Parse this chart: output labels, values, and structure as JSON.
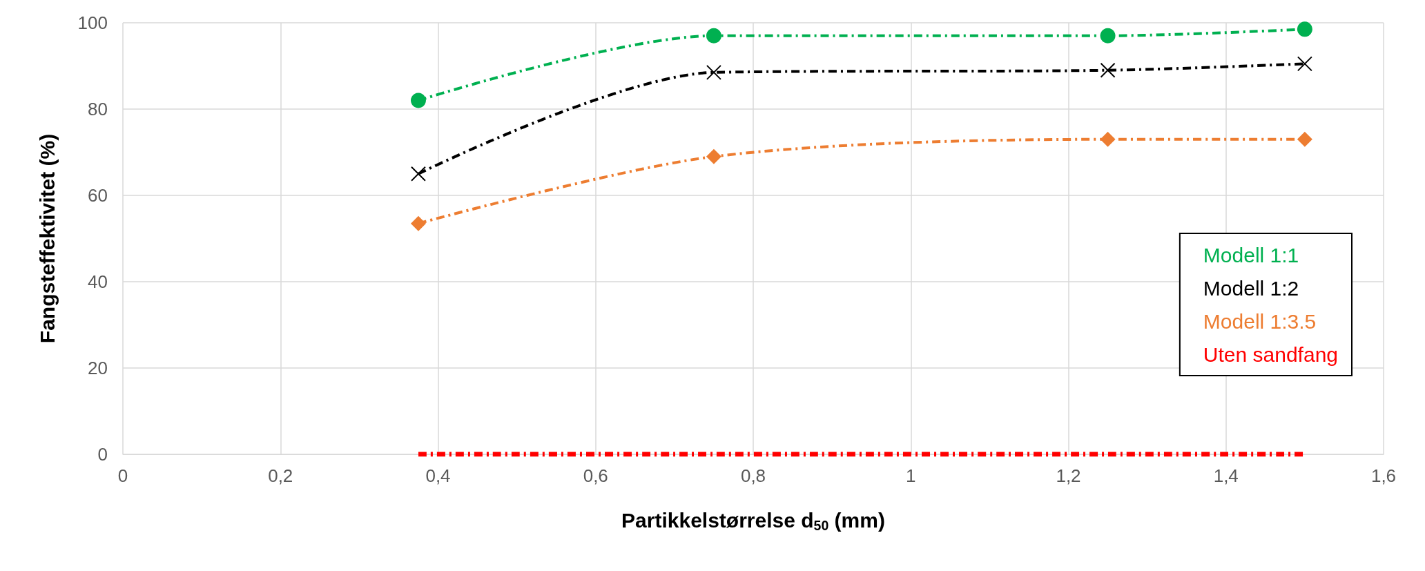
{
  "chart_data": {
    "type": "line",
    "xlabel": "Partikkelstørrelse d$_{50}$ (mm)",
    "ylabel": "Fangsteffektivitet (%)",
    "x": [
      0.375,
      0.75,
      1.25,
      1.5
    ],
    "series": [
      {
        "name": "Modell 1:1",
        "color": "#00b050",
        "marker": "circle",
        "values": [
          82,
          97,
          97,
          98.5
        ]
      },
      {
        "name": "Modell 1:2",
        "color": "#000000",
        "marker": "cross",
        "values": [
          65,
          88.5,
          89,
          90.5
        ]
      },
      {
        "name": "Modell 1:3.5",
        "color": "#ed7d31",
        "marker": "diamond",
        "values": [
          53.5,
          69,
          73,
          73
        ]
      },
      {
        "name": "Uten sandfang",
        "color": "#ff0000",
        "marker": "none",
        "values": [
          0,
          0,
          0,
          0
        ]
      }
    ],
    "xlim": [
      0,
      1.6
    ],
    "xticks": [
      0,
      {
        "value": 0.2,
        "label": "0,2"
      },
      {
        "value": 0.4,
        "label": "0,4"
      },
      {
        "value": 0.6,
        "label": "0,6"
      },
      {
        "value": 0.8,
        "label": "0,8"
      },
      1,
      {
        "value": 1.2,
        "label": "1,2"
      },
      {
        "value": 1.4,
        "label": "1,4"
      },
      {
        "value": 1.6,
        "label": "1,6"
      }
    ],
    "ylim": [
      0,
      100
    ],
    "yticks": [
      0,
      20,
      40,
      60,
      80,
      100
    ],
    "grid": true,
    "legend": "right",
    "line_style": "dashed"
  }
}
